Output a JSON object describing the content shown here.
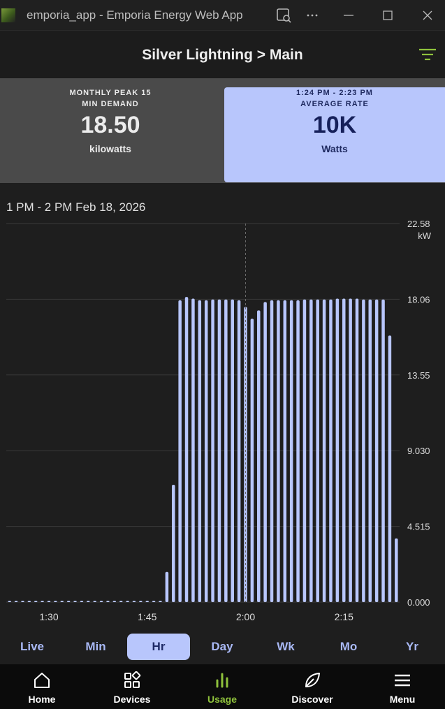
{
  "window": {
    "title": "emporia_app - Emporia Energy Web App"
  },
  "header": {
    "breadcrumb": "Silver Lightning > Main"
  },
  "summary": {
    "left": {
      "label_line1": "MONTHLY PEAK 15",
      "label_line2": "MIN DEMAND",
      "value": "18.50",
      "unit": "kilowatts"
    },
    "right": {
      "label_line1": "1:24 PM - 2:23 PM",
      "label_line2": "AVERAGE RATE",
      "value": "10K",
      "unit": "Watts"
    }
  },
  "chart_data": {
    "type": "bar",
    "title": "1 PM - 2 PM Feb 18, 2026",
    "ylabel": "kW",
    "ylim": [
      0,
      22.58
    ],
    "yticks": [
      "0.000",
      "4.515",
      "9.030",
      "13.55",
      "18.06",
      "22.58"
    ],
    "xticks": [
      "1:30",
      "1:45",
      "2:00",
      "2:15"
    ],
    "x_start_minute": 24,
    "values": [
      0.05,
      0.05,
      0.05,
      0.05,
      0.05,
      0.05,
      0.05,
      0.05,
      0.05,
      0.05,
      0.05,
      0.05,
      0.05,
      0.05,
      0.05,
      0.05,
      0.05,
      0.05,
      0.05,
      0.05,
      0.05,
      0.05,
      0.05,
      0.05,
      1.8,
      7.0,
      18.0,
      18.2,
      18.1,
      18.0,
      18.0,
      18.05,
      18.05,
      18.05,
      18.05,
      18.0,
      17.6,
      16.9,
      17.4,
      17.9,
      18.0,
      18.0,
      18.0,
      18.0,
      18.0,
      18.05,
      18.05,
      18.05,
      18.05,
      18.05,
      18.1,
      18.1,
      18.1,
      18.1,
      18.05,
      18.05,
      18.05,
      18.05,
      15.9,
      3.8
    ],
    "grid": true,
    "cursor_at": "2:00"
  },
  "ranges": {
    "items": [
      "Live",
      "Min",
      "Hr",
      "Day",
      "Wk",
      "Mo",
      "Yr"
    ],
    "active": "Hr"
  },
  "nav": {
    "items": [
      "Home",
      "Devices",
      "Usage",
      "Discover",
      "Menu"
    ],
    "active": "Usage"
  },
  "colors": {
    "bar": "#b8c6fc",
    "accent": "#8fc23c",
    "card_highlight": "#b8c6fc"
  }
}
